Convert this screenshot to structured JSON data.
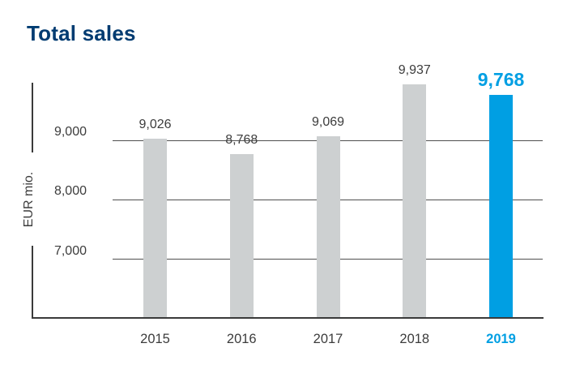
{
  "chart_data": {
    "type": "bar",
    "title": "Total sales",
    "ylabel": "EUR mio.",
    "categories": [
      "2015",
      "2016",
      "2017",
      "2018",
      "2019"
    ],
    "values": [
      9026,
      8768,
      9069,
      9937,
      9768
    ],
    "value_labels": [
      "9,026",
      "8,768",
      "9,069",
      "9,937",
      "9,768"
    ],
    "yticks": [
      9000,
      8000,
      7000
    ],
    "ytick_labels": [
      "9,000",
      "8,000",
      "7,000"
    ],
    "ylim": [
      6000,
      10000
    ],
    "grid": true,
    "legend": "none",
    "highlight_index": 4
  },
  "colors": {
    "title": "#003b71",
    "bar": "#cdd0d1",
    "highlight": "#009fe3",
    "text": "#3c3c3c",
    "axis": "#3a3a3a",
    "gridline": "#4f4f4f"
  }
}
